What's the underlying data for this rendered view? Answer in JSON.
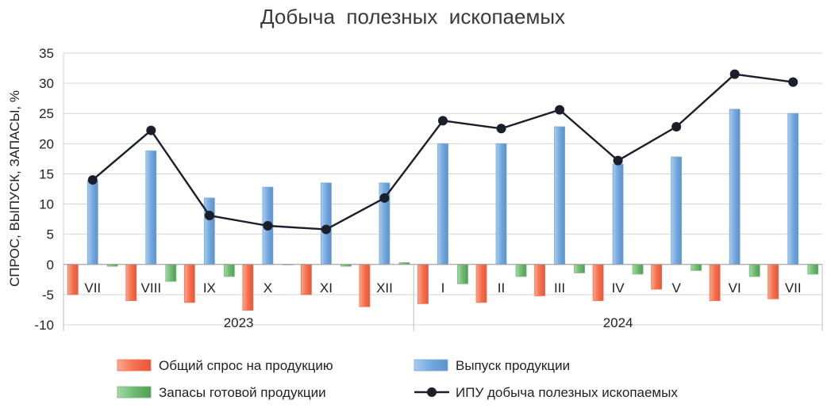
{
  "chart_data": {
    "type": "bar+line",
    "title": "Добыча  полезных  ископаемых",
    "ylabel": "СПРОС, ВЫПУСК, ЗАПАСЫ, %",
    "ylim": [
      -10,
      35
    ],
    "yticks": [
      35,
      30,
      25,
      20,
      15,
      10,
      5,
      0,
      -5,
      -10
    ],
    "grid": true,
    "categories": [
      "VII",
      "VIII",
      "IX",
      "X",
      "XI",
      "XII",
      "I",
      "II",
      "III",
      "IV",
      "V",
      "VI",
      "VII"
    ],
    "year_groups": [
      {
        "label": "2023",
        "count": 6
      },
      {
        "label": "2024",
        "count": 7
      }
    ],
    "series": [
      {
        "name": "Общий спрос на продукцию",
        "kind": "bar",
        "color": "#f4704f",
        "values": [
          -5,
          -6,
          -6.3,
          -7.6,
          -5,
          -7,
          -6.5,
          -6.3,
          -5.2,
          -6,
          -4.1,
          -6,
          -5.7
        ]
      },
      {
        "name": "Выпуск продукции",
        "kind": "bar",
        "color": "#74a8dc",
        "values": [
          13.8,
          18.8,
          11,
          12.8,
          13.5,
          13.5,
          20,
          20,
          22.8,
          16.6,
          17.8,
          25.7,
          25
        ]
      },
      {
        "name": "Запасы готовой продукции",
        "kind": "bar",
        "color": "#6fba72",
        "values": [
          -0.3,
          -2.8,
          -2,
          0,
          -0.3,
          0.3,
          -3.2,
          -2,
          -1.4,
          -1.6,
          -1,
          -2,
          -1.6
        ]
      },
      {
        "name": "ИПУ добыча полезных ископаемых",
        "kind": "line",
        "color": "#1b1f2b",
        "values": [
          14,
          22.2,
          8.1,
          6.4,
          5.8,
          11,
          23.8,
          22.5,
          25.6,
          17.2,
          22.8,
          31.5,
          30.2
        ]
      }
    ],
    "legend": {
      "placement": "bottom"
    }
  }
}
